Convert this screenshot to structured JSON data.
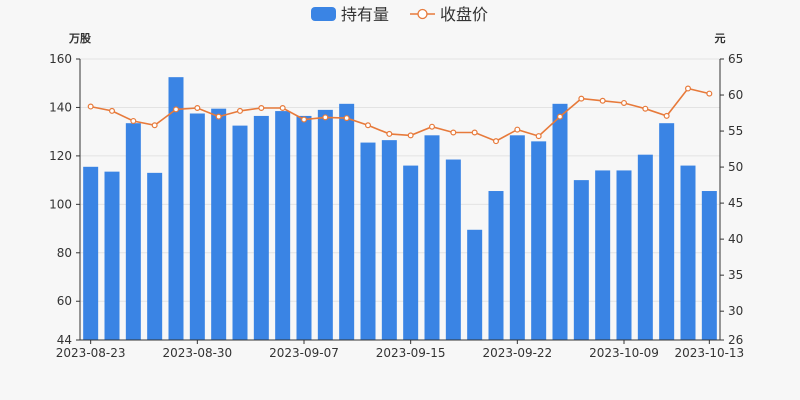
{
  "chart_data": {
    "type": "bar",
    "legend": {
      "position": "top-center",
      "items": [
        {
          "label": "持有量",
          "kind": "bar"
        },
        {
          "label": "收盘价",
          "kind": "line"
        }
      ]
    },
    "y_left": {
      "unit_label": "万股",
      "min": 44,
      "max": 160,
      "ticks": [
        44,
        60,
        80,
        100,
        120,
        140,
        160
      ]
    },
    "y_right": {
      "unit_label": "元",
      "min": 26,
      "max": 65,
      "ticks": [
        26,
        30,
        35,
        40,
        45,
        50,
        55,
        60,
        65
      ]
    },
    "x_tick_labels": [
      {
        "index": 0,
        "label": "2023-08-23"
      },
      {
        "index": 5,
        "label": "2023-08-30"
      },
      {
        "index": 10,
        "label": "2023-09-07"
      },
      {
        "index": 15,
        "label": "2023-09-15"
      },
      {
        "index": 20,
        "label": "2023-09-22"
      },
      {
        "index": 25,
        "label": "2023-10-09"
      },
      {
        "index": 29,
        "label": "2023-10-13"
      }
    ],
    "grid": {
      "horizontal": true,
      "vertical": false
    },
    "series": [
      {
        "name": "持有量",
        "type": "bar",
        "axis": "left",
        "color": "#3a84e4",
        "values": [
          115.5,
          113.5,
          133.5,
          113,
          152.5,
          137.5,
          139.5,
          132.5,
          136.5,
          138.5,
          136.5,
          139,
          141.5,
          125.5,
          126.5,
          116,
          128.5,
          118.5,
          89.5,
          105.5,
          128.5,
          126,
          141.5,
          110,
          114,
          114,
          120.5,
          133.5,
          116,
          105.5
        ]
      },
      {
        "name": "收盘价",
        "type": "line",
        "axis": "right",
        "color": "#e77a3b",
        "values": [
          58.4,
          57.8,
          56.4,
          55.8,
          58.0,
          58.2,
          57.0,
          57.8,
          58.2,
          58.2,
          56.6,
          56.9,
          56.8,
          55.8,
          54.6,
          54.4,
          55.6,
          54.8,
          54.8,
          53.6,
          55.2,
          54.3,
          57.0,
          59.5,
          59.2,
          58.9,
          58.1,
          57.1,
          60.9,
          60.2
        ]
      }
    ]
  }
}
